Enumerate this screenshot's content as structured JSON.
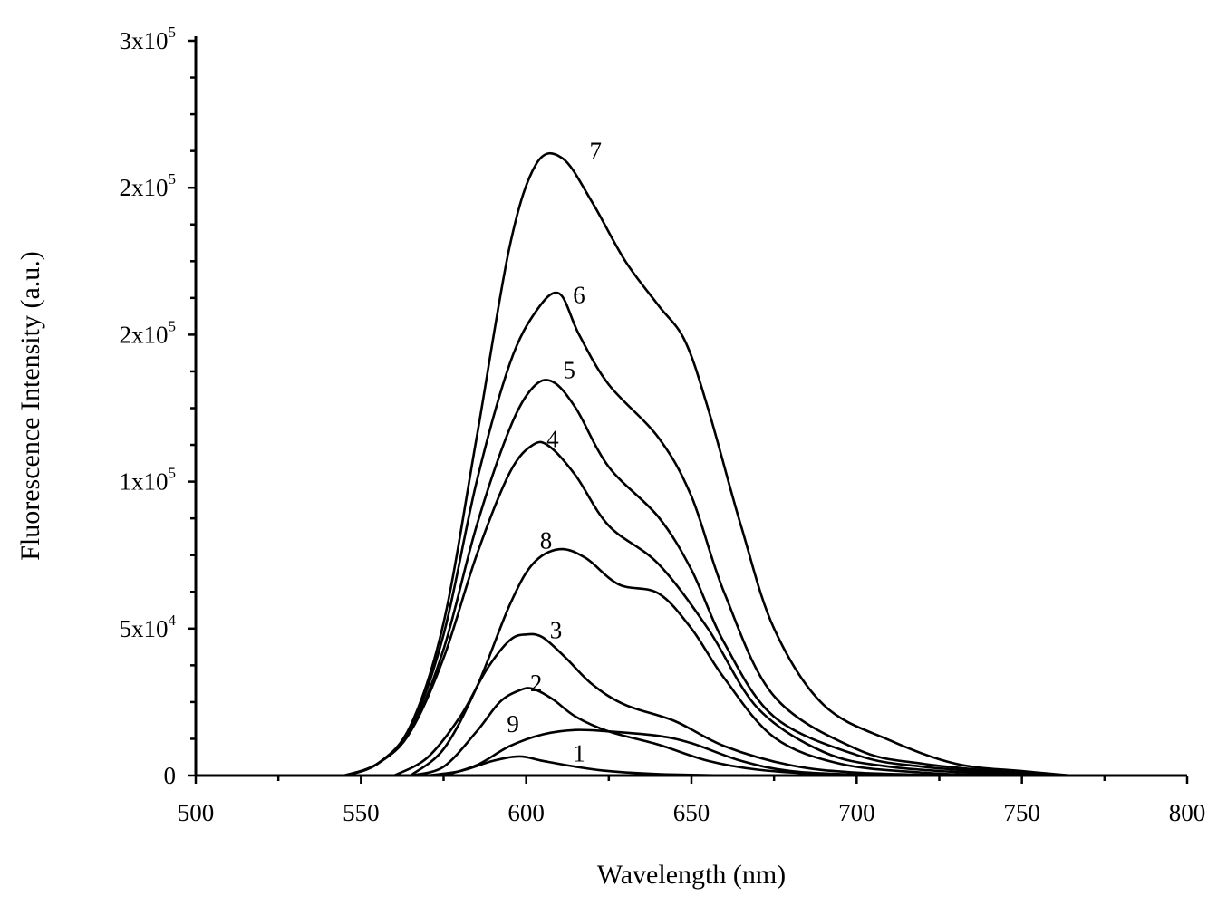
{
  "chart_data": {
    "type": "line",
    "xlabel": "Wavelength (nm)",
    "ylabel": "Fluorescence Intensity (a.u.)",
    "xlim": [
      500,
      800
    ],
    "ylim": [
      0,
      250000
    ],
    "x_ticks": [
      500,
      550,
      600,
      650,
      700,
      750,
      800
    ],
    "y_ticks": [
      {
        "value": 0,
        "mantissa": "0",
        "exp": ""
      },
      {
        "value": 50000,
        "mantissa": "5x10",
        "exp": "4"
      },
      {
        "value": 100000,
        "mantissa": "1x10",
        "exp": "5"
      },
      {
        "value": 150000,
        "mantissa": "2x10",
        "exp": "5"
      },
      {
        "value": 200000,
        "mantissa": "2x10",
        "exp": "5"
      },
      {
        "value": 250000,
        "mantissa": "3x10",
        "exp": "5"
      }
    ],
    "grid": false,
    "legend": "none",
    "series": [
      {
        "label": "1",
        "label_at": [
          616,
          7500
        ],
        "points": [
          [
            570,
            0
          ],
          [
            580,
            1500
          ],
          [
            590,
            5000
          ],
          [
            598,
            6500
          ],
          [
            605,
            5000
          ],
          [
            615,
            3000
          ],
          [
            625,
            1500
          ],
          [
            640,
            500
          ],
          [
            660,
            0
          ]
        ]
      },
      {
        "label": "2",
        "label_at": [
          603,
          31500
        ],
        "points": [
          [
            565,
            0
          ],
          [
            575,
            3000
          ],
          [
            585,
            15000
          ],
          [
            592,
            25000
          ],
          [
            598,
            29000
          ],
          [
            602,
            29500
          ],
          [
            608,
            26000
          ],
          [
            615,
            20000
          ],
          [
            625,
            15000
          ],
          [
            640,
            10500
          ],
          [
            655,
            5000
          ],
          [
            670,
            2000
          ],
          [
            690,
            500
          ],
          [
            720,
            0
          ]
        ]
      },
      {
        "label": "3",
        "label_at": [
          609,
          49500
        ],
        "points": [
          [
            560,
            0
          ],
          [
            570,
            6000
          ],
          [
            580,
            20000
          ],
          [
            588,
            36000
          ],
          [
            595,
            46000
          ],
          [
            600,
            48000
          ],
          [
            605,
            47000
          ],
          [
            612,
            40000
          ],
          [
            620,
            31000
          ],
          [
            630,
            24000
          ],
          [
            645,
            18500
          ],
          [
            660,
            10000
          ],
          [
            680,
            3500
          ],
          [
            700,
            1000
          ],
          [
            730,
            0
          ]
        ]
      },
      {
        "label": "4",
        "label_at": [
          608,
          114500
        ],
        "points": [
          [
            545,
            0
          ],
          [
            555,
            4000
          ],
          [
            565,
            15000
          ],
          [
            575,
            40000
          ],
          [
            585,
            75000
          ],
          [
            595,
            103000
          ],
          [
            602,
            112500
          ],
          [
            607,
            112000
          ],
          [
            615,
            102000
          ],
          [
            625,
            85000
          ],
          [
            640,
            72000
          ],
          [
            655,
            50000
          ],
          [
            670,
            23000
          ],
          [
            690,
            8000
          ],
          [
            710,
            3000
          ],
          [
            740,
            600
          ],
          [
            760,
            0
          ]
        ]
      },
      {
        "label": "5",
        "label_at": [
          613,
          138000
        ],
        "points": [
          [
            545,
            0
          ],
          [
            555,
            4000
          ],
          [
            565,
            15000
          ],
          [
            575,
            43000
          ],
          [
            585,
            85000
          ],
          [
            595,
            118000
          ],
          [
            602,
            132000
          ],
          [
            608,
            134000
          ],
          [
            615,
            125000
          ],
          [
            625,
            105000
          ],
          [
            640,
            88000
          ],
          [
            650,
            70000
          ],
          [
            660,
            45000
          ],
          [
            675,
            20000
          ],
          [
            700,
            7000
          ],
          [
            720,
            3000
          ],
          [
            750,
            500
          ],
          [
            760,
            0
          ]
        ]
      },
      {
        "label": "6",
        "label_at": [
          616,
          163500
        ],
        "points": [
          [
            545,
            0
          ],
          [
            555,
            4000
          ],
          [
            565,
            16000
          ],
          [
            575,
            48000
          ],
          [
            585,
            100000
          ],
          [
            595,
            140000
          ],
          [
            603,
            158000
          ],
          [
            610,
            164000
          ],
          [
            616,
            150000
          ],
          [
            625,
            133000
          ],
          [
            640,
            115000
          ],
          [
            650,
            95000
          ],
          [
            660,
            62000
          ],
          [
            675,
            27000
          ],
          [
            700,
            9000
          ],
          [
            720,
            4000
          ],
          [
            750,
            800
          ],
          [
            765,
            0
          ]
        ]
      },
      {
        "label": "7",
        "label_at": [
          621,
          212500
        ],
        "points": [
          [
            545,
            0
          ],
          [
            555,
            4000
          ],
          [
            565,
            17000
          ],
          [
            575,
            52000
          ],
          [
            585,
            115000
          ],
          [
            595,
            180000
          ],
          [
            603,
            208000
          ],
          [
            611,
            210000
          ],
          [
            620,
            195000
          ],
          [
            630,
            175000
          ],
          [
            640,
            160000
          ],
          [
            648,
            148000
          ],
          [
            655,
            125000
          ],
          [
            665,
            85000
          ],
          [
            675,
            50000
          ],
          [
            690,
            24000
          ],
          [
            710,
            12000
          ],
          [
            730,
            4000
          ],
          [
            750,
            1500
          ],
          [
            765,
            0
          ]
        ]
      },
      {
        "label": "8",
        "label_at": [
          606,
          80000
        ],
        "points": [
          [
            565,
            0
          ],
          [
            575,
            9000
          ],
          [
            585,
            30000
          ],
          [
            595,
            58000
          ],
          [
            602,
            72000
          ],
          [
            610,
            77000
          ],
          [
            618,
            74000
          ],
          [
            628,
            65000
          ],
          [
            640,
            62000
          ],
          [
            650,
            50000
          ],
          [
            660,
            33000
          ],
          [
            675,
            13000
          ],
          [
            695,
            4000
          ],
          [
            720,
            1000
          ],
          [
            740,
            0
          ]
        ]
      },
      {
        "label": "9",
        "label_at": [
          596,
          17500
        ],
        "points": [
          [
            575,
            0
          ],
          [
            585,
            3500
          ],
          [
            595,
            10000
          ],
          [
            605,
            14000
          ],
          [
            615,
            15500
          ],
          [
            625,
            15000
          ],
          [
            640,
            13500
          ],
          [
            650,
            11000
          ],
          [
            665,
            5000
          ],
          [
            680,
            1500
          ],
          [
            700,
            300
          ],
          [
            720,
            0
          ]
        ]
      }
    ]
  }
}
